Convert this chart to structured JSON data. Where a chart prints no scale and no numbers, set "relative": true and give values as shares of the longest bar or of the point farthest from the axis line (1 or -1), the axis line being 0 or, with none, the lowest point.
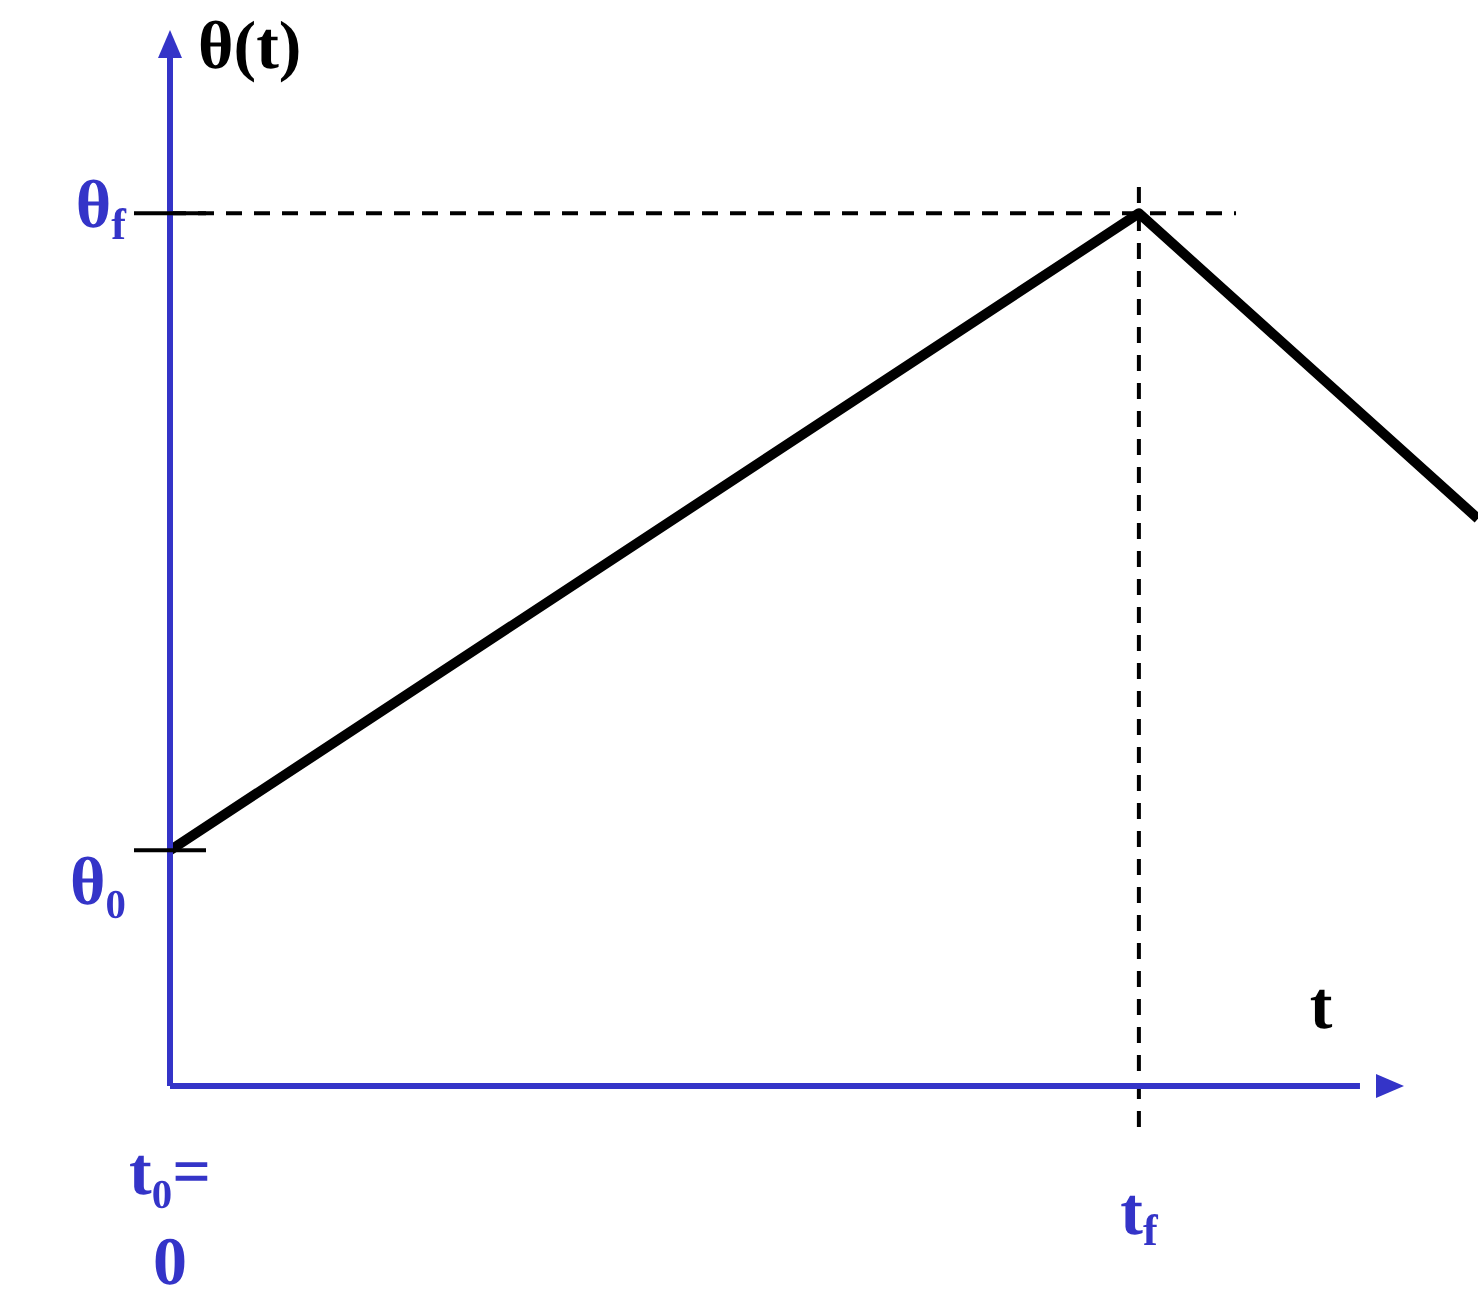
{
  "chart_data": {
    "type": "line",
    "relative": true,
    "xlabel": "t",
    "ylabel": "θ(t)",
    "categories": [
      "t₀=0",
      null,
      null,
      null,
      null,
      null,
      null,
      null,
      null,
      null,
      null,
      null,
      null,
      null,
      null,
      null,
      null,
      null,
      null,
      null,
      "t$_{f}$",
      null,
      null,
      null,
      null,
      null,
      null,
      null
    ],
    "series": [
      {
        "color": "#000000",
        "values": [
          0.27,
          null,
          null,
          null,
          null,
          null,
          null,
          null,
          null,
          null,
          null,
          null,
          null,
          null,
          null,
          null,
          null,
          null,
          null,
          null,
          1,
          null,
          null,
          null,
          null,
          null,
          null,
          0.65
        ]
      }
    ],
    "marker": "none",
    "ref_lines": [
      {
        "axis": "y",
        "value": 1,
        "label": "θ$_{f}$",
        "line_style": "dashed",
        "color": "#000000"
      },
      {
        "axis": "x",
        "value": "t$_{f}$",
        "line_style": "dashed",
        "color": "#000000"
      }
    ],
    "annotations": [
      {
        "text": "θ₀",
        "x": "t₀=0",
        "y": 0.27
      }
    ]
  }
}
